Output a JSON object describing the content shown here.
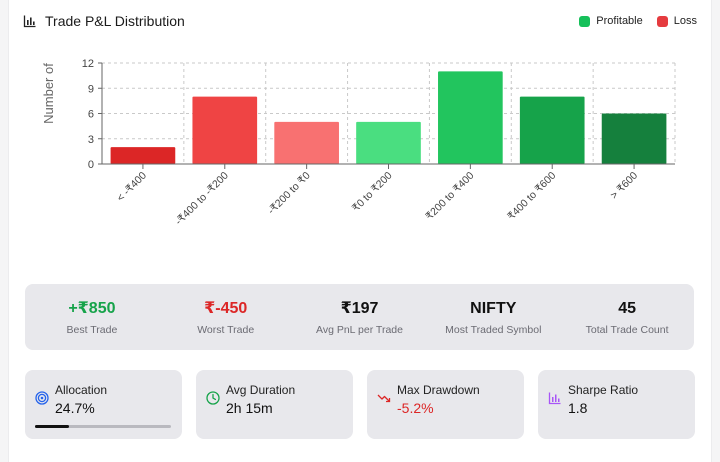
{
  "header": {
    "title": "Trade P&L Distribution",
    "legend": [
      {
        "label": "Profitable",
        "color": "#16c05a"
      },
      {
        "label": "Loss",
        "color": "#e53b3f"
      }
    ]
  },
  "chart_data": {
    "type": "bar",
    "ylabel": "Number of",
    "xlabel": "",
    "ylim": [
      0,
      12
    ],
    "yticks": [
      "0",
      "3",
      "6",
      "9",
      "12"
    ],
    "grid": true,
    "legend_position": "top-right",
    "categories": [
      "< -₹400",
      "-₹400 to -₹200",
      "-₹200 to ₹0",
      "₹0 to ₹200",
      "₹200 to ₹400",
      "₹400 to ₹600",
      "> ₹600"
    ],
    "values": [
      2,
      8,
      5,
      5,
      11,
      8,
      6
    ],
    "colors": [
      "#dc2626",
      "#ef4444",
      "#f87171",
      "#4ade80",
      "#22c55e",
      "#16a34a",
      "#15803d"
    ]
  },
  "stats": [
    {
      "value": "+₹850",
      "label": "Best Trade",
      "color": "#16a34a"
    },
    {
      "value": "₹-450",
      "label": "Worst Trade",
      "color": "#dc2626"
    },
    {
      "value": "₹197",
      "label": "Avg PnL per Trade",
      "color": "#111111"
    },
    {
      "value": "NIFTY",
      "label": "Most Traded Symbol",
      "color": "#111111"
    },
    {
      "value": "45",
      "label": "Total Trade Count",
      "color": "#111111"
    }
  ],
  "metrics": {
    "allocation": {
      "label": "Allocation",
      "value": "24.7%",
      "progress": 0.247,
      "icon": "target-icon",
      "icon_color": "#2563eb"
    },
    "duration": {
      "label": "Avg Duration",
      "value": "2h 15m",
      "icon": "clock-icon",
      "icon_color": "#16a34a"
    },
    "drawdown": {
      "label": "Max Drawdown",
      "value": "-5.2%",
      "value_color": "#dc2626",
      "icon": "trending-down-icon",
      "icon_color": "#dc2626"
    },
    "sharpe": {
      "label": "Sharpe Ratio",
      "value": "1.8",
      "icon": "bar-chart-icon",
      "icon_color": "#a855f7"
    }
  }
}
